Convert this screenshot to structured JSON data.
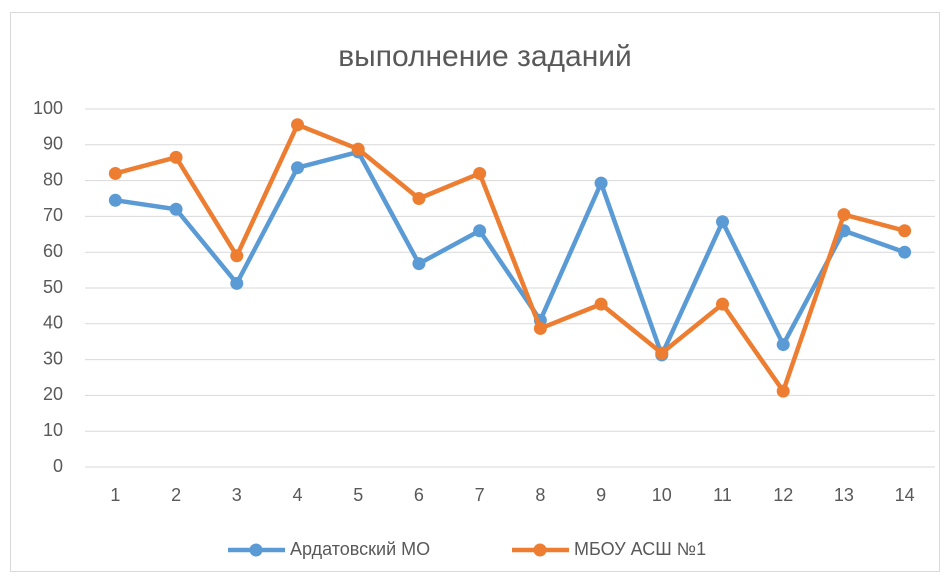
{
  "chart_data": {
    "type": "line",
    "title": "выполнение заданий",
    "categories": [
      "1",
      "2",
      "3",
      "4",
      "5",
      "6",
      "7",
      "8",
      "9",
      "10",
      "11",
      "12",
      "13",
      "14"
    ],
    "series": [
      {
        "name": "Ардатовский МО",
        "color": "#5b9bd5",
        "values": [
          74.5,
          72,
          51.3,
          83.6,
          88,
          56.8,
          66,
          41,
          79.3,
          31.3,
          68.5,
          34.2,
          66,
          60
        ]
      },
      {
        "name": "МБОУ АСШ №1",
        "color": "#ed7d31",
        "values": [
          82,
          86.5,
          59,
          95.6,
          88.8,
          75,
          82,
          38.7,
          45.5,
          31.8,
          45.5,
          21.2,
          70.5,
          66
        ]
      }
    ],
    "ylim": [
      0,
      100
    ],
    "yticks": [
      0,
      10,
      20,
      30,
      40,
      50,
      60,
      70,
      80,
      90,
      100
    ],
    "grid": true,
    "legend": "bottom"
  }
}
